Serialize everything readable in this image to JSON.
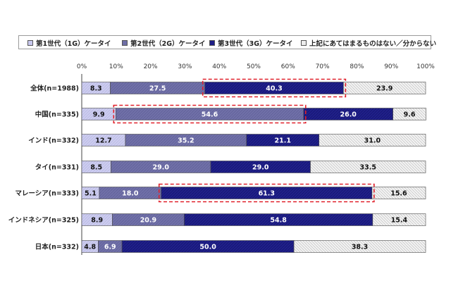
{
  "legend": [
    {
      "label": "第1世代（1G）ケータイ",
      "color": "#c8c8ee"
    },
    {
      "label": "第2世代（2G）ケータイ",
      "color": "#6e6ea6"
    },
    {
      "label": "第3世代（3G）ケータイ",
      "color": "#1e1e86"
    },
    {
      "label": "上記にあてはまるものはない／分からない",
      "color": "#e6e6e6"
    }
  ],
  "chart_data": {
    "type": "bar",
    "orientation": "horizontal",
    "stacked": "percent",
    "xlim": [
      0,
      100
    ],
    "x_ticks": [
      "0%",
      "10%",
      "20%",
      "30%",
      "40%",
      "50%",
      "60%",
      "70%",
      "80%",
      "90%",
      "100%"
    ],
    "categories": [
      "全体(n=1988)",
      "中国(n=335)",
      "インド(n=332)",
      "タイ(n=331)",
      "マレーシア(n=333)",
      "インドネシア(n=325)",
      "日本(n=332)"
    ],
    "series": [
      {
        "name": "第1世代（1G）ケータイ",
        "values": [
          8.3,
          9.9,
          12.7,
          8.5,
          5.1,
          8.9,
          4.8
        ]
      },
      {
        "name": "第2世代（2G）ケータイ",
        "values": [
          27.5,
          54.6,
          35.2,
          29.0,
          18.0,
          20.9,
          6.9
        ]
      },
      {
        "name": "第3世代（3G）ケータイ",
        "values": [
          40.3,
          26.0,
          21.1,
          29.0,
          61.3,
          54.8,
          50.0
        ]
      },
      {
        "name": "上記にあてはまるものはない／分からない",
        "values": [
          23.9,
          9.6,
          31.0,
          33.5,
          15.6,
          15.4,
          38.3
        ]
      }
    ],
    "highlights": [
      {
        "category": "全体(n=1988)",
        "series": "第3世代（3G）ケータイ"
      },
      {
        "category": "中国(n=335)",
        "series": "第2世代（2G）ケータイ"
      },
      {
        "category": "マレーシア(n=333)",
        "series": "第3世代（3G）ケータイ"
      }
    ],
    "grid": false,
    "legend_position": "top"
  }
}
